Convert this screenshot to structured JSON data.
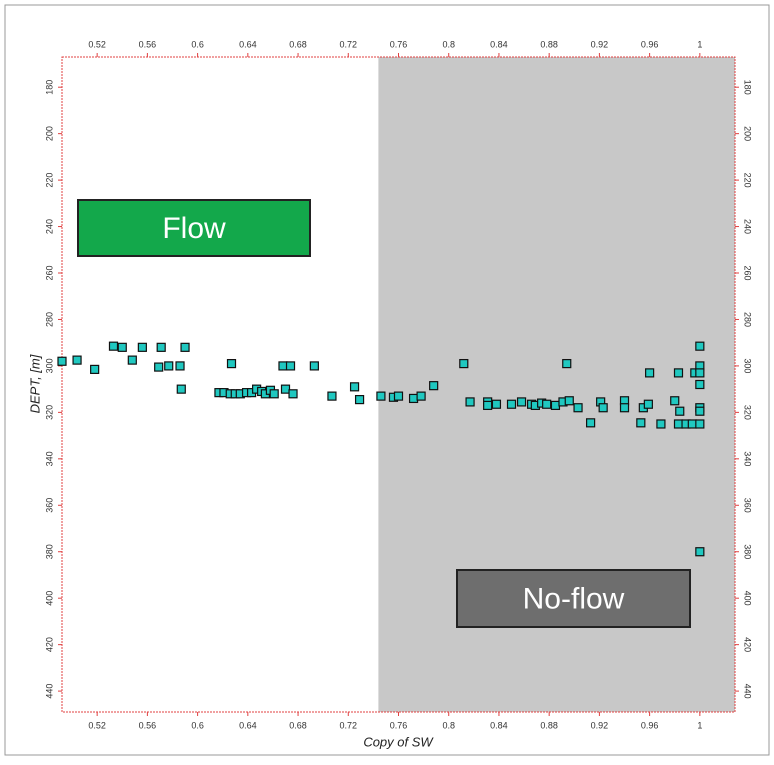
{
  "chart_data": {
    "type": "scatter",
    "xlabel": "Copy of SW",
    "ylabel": "DEPT, [m]",
    "xlim": [
      0.492,
      1.028
    ],
    "ylim": [
      167,
      449
    ],
    "y_inverted": true,
    "xticks": [
      0.52,
      0.56,
      0.6,
      0.64,
      0.68,
      0.72,
      0.76,
      0.8,
      0.84,
      0.88,
      0.92,
      0.96,
      1
    ],
    "yticks": [
      180,
      200,
      220,
      240,
      260,
      280,
      300,
      320,
      340,
      360,
      380,
      400,
      420,
      440
    ],
    "color": "#20c8c0",
    "shaded_region": {
      "xmin": 0.744,
      "xmax": 1.028,
      "color": "#c8c8c8"
    },
    "annotations": [
      {
        "text": "Flow",
        "color": "#13a84b"
      },
      {
        "text": "No-flow",
        "color": "#6e6e6e"
      }
    ],
    "x": [
      0.492,
      0.504,
      0.518,
      0.533,
      0.54,
      0.548,
      0.556,
      0.569,
      0.571,
      0.577,
      0.586,
      0.59,
      0.587,
      0.617,
      0.621,
      0.626,
      0.627,
      0.63,
      0.634,
      0.639,
      0.643,
      0.647,
      0.651,
      0.654,
      0.658,
      0.661,
      0.668,
      0.67,
      0.674,
      0.676,
      0.693,
      0.707,
      0.725,
      0.729,
      0.746,
      0.756,
      0.76,
      0.772,
      0.778,
      0.788,
      0.812,
      0.817,
      0.831,
      0.831,
      0.838,
      0.85,
      0.858,
      0.866,
      0.869,
      0.874,
      0.878,
      0.885,
      0.891,
      0.894,
      0.896,
      0.903,
      0.913,
      0.921,
      0.923,
      0.94,
      0.94,
      0.953,
      0.955,
      0.959,
      0.96,
      0.969,
      0.98,
      0.983,
      0.983,
      0.984,
      0.989,
      0.994,
      0.996,
      1.0,
      1.0,
      1.0,
      1.0,
      1.0,
      1.0,
      1.0,
      1.0
    ],
    "y": [
      298,
      297.5,
      301.5,
      291.5,
      292,
      297.5,
      292,
      300.5,
      292,
      300,
      300,
      292,
      310,
      311.5,
      311.5,
      312,
      299,
      312,
      312,
      311.5,
      311.5,
      310,
      311,
      312,
      310.5,
      312,
      300,
      310,
      300,
      312,
      300,
      313,
      309,
      314.5,
      313,
      313.5,
      313,
      314,
      313,
      308.5,
      299,
      315.5,
      315.5,
      317,
      316.5,
      316.5,
      315.5,
      316.5,
      317,
      316,
      316.5,
      317,
      315.5,
      299,
      315,
      318,
      324.5,
      315.5,
      318,
      315,
      318,
      324.5,
      318,
      316.5,
      303,
      325,
      315,
      325,
      303,
      319.5,
      325,
      325,
      303,
      291.5,
      300,
      303,
      308,
      318,
      319.5,
      325,
      380
    ]
  }
}
